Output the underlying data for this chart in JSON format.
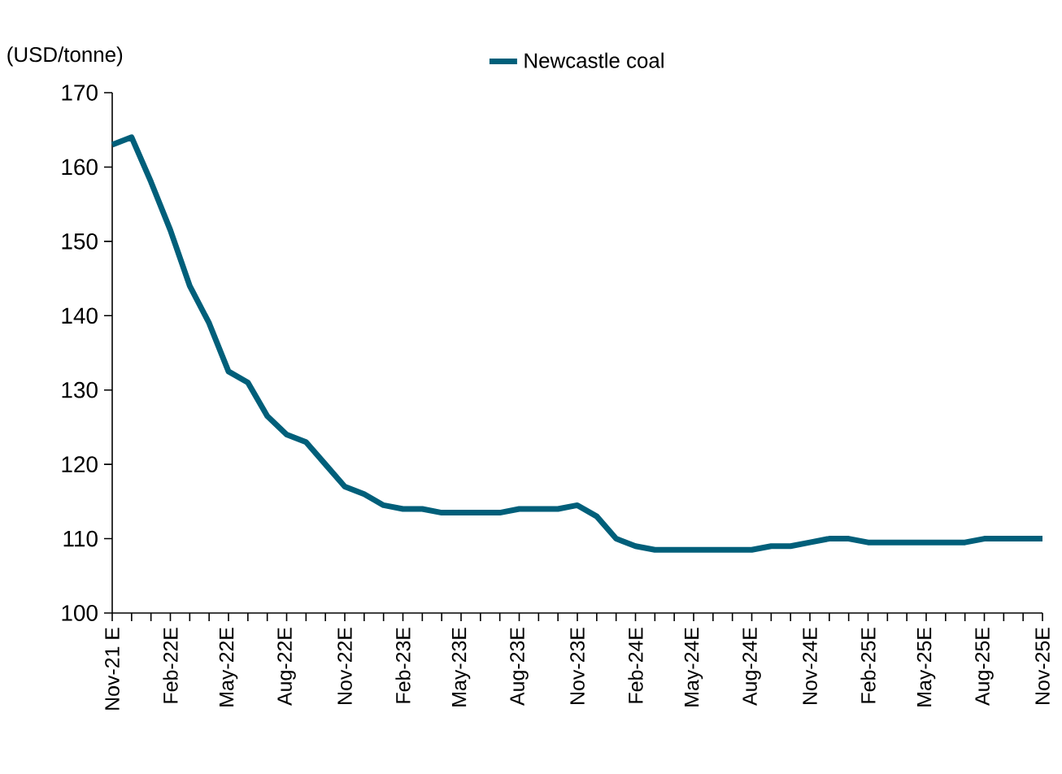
{
  "chart_data": {
    "type": "line",
    "ylabel": "(USD/tonne)",
    "categories": [
      "Nov-21 E",
      null,
      null,
      "Feb-22E",
      null,
      null,
      "May-22E",
      null,
      null,
      "Aug-22E",
      null,
      null,
      "Nov-22E",
      null,
      null,
      "Feb-23E",
      null,
      null,
      "May-23E",
      null,
      null,
      "Aug-23E",
      null,
      null,
      "Nov-23E",
      null,
      null,
      "Feb-24E",
      null,
      null,
      "May-24E",
      null,
      null,
      "Aug-24E",
      null,
      null,
      "Nov-24E",
      null,
      null,
      "Feb-25E",
      null,
      null,
      "May-25E",
      null,
      null,
      "Aug-25E",
      null,
      null,
      "Nov-25E"
    ],
    "series": [
      {
        "name": "Newcastle coal",
        "color": "#005f7a",
        "values": [
          163,
          164,
          158,
          151.5,
          144,
          139,
          132.5,
          131,
          126.5,
          124,
          123,
          120,
          117,
          116,
          114.5,
          114,
          114,
          113.5,
          113.5,
          113.5,
          113.5,
          114,
          114,
          114,
          114.5,
          113,
          110,
          109,
          108.5,
          108.5,
          108.5,
          108.5,
          108.5,
          108.5,
          109,
          109,
          109.5,
          110,
          110,
          109.5,
          109.5,
          109.5,
          109.5,
          109.5,
          109.5,
          110,
          110,
          110,
          110
        ]
      }
    ],
    "ylim": [
      100,
      170
    ],
    "yticks": [
      100,
      110,
      120,
      130,
      140,
      150,
      160,
      170
    ],
    "grid": false,
    "legend": "top",
    "marker": "none",
    "line_style": "solid"
  }
}
